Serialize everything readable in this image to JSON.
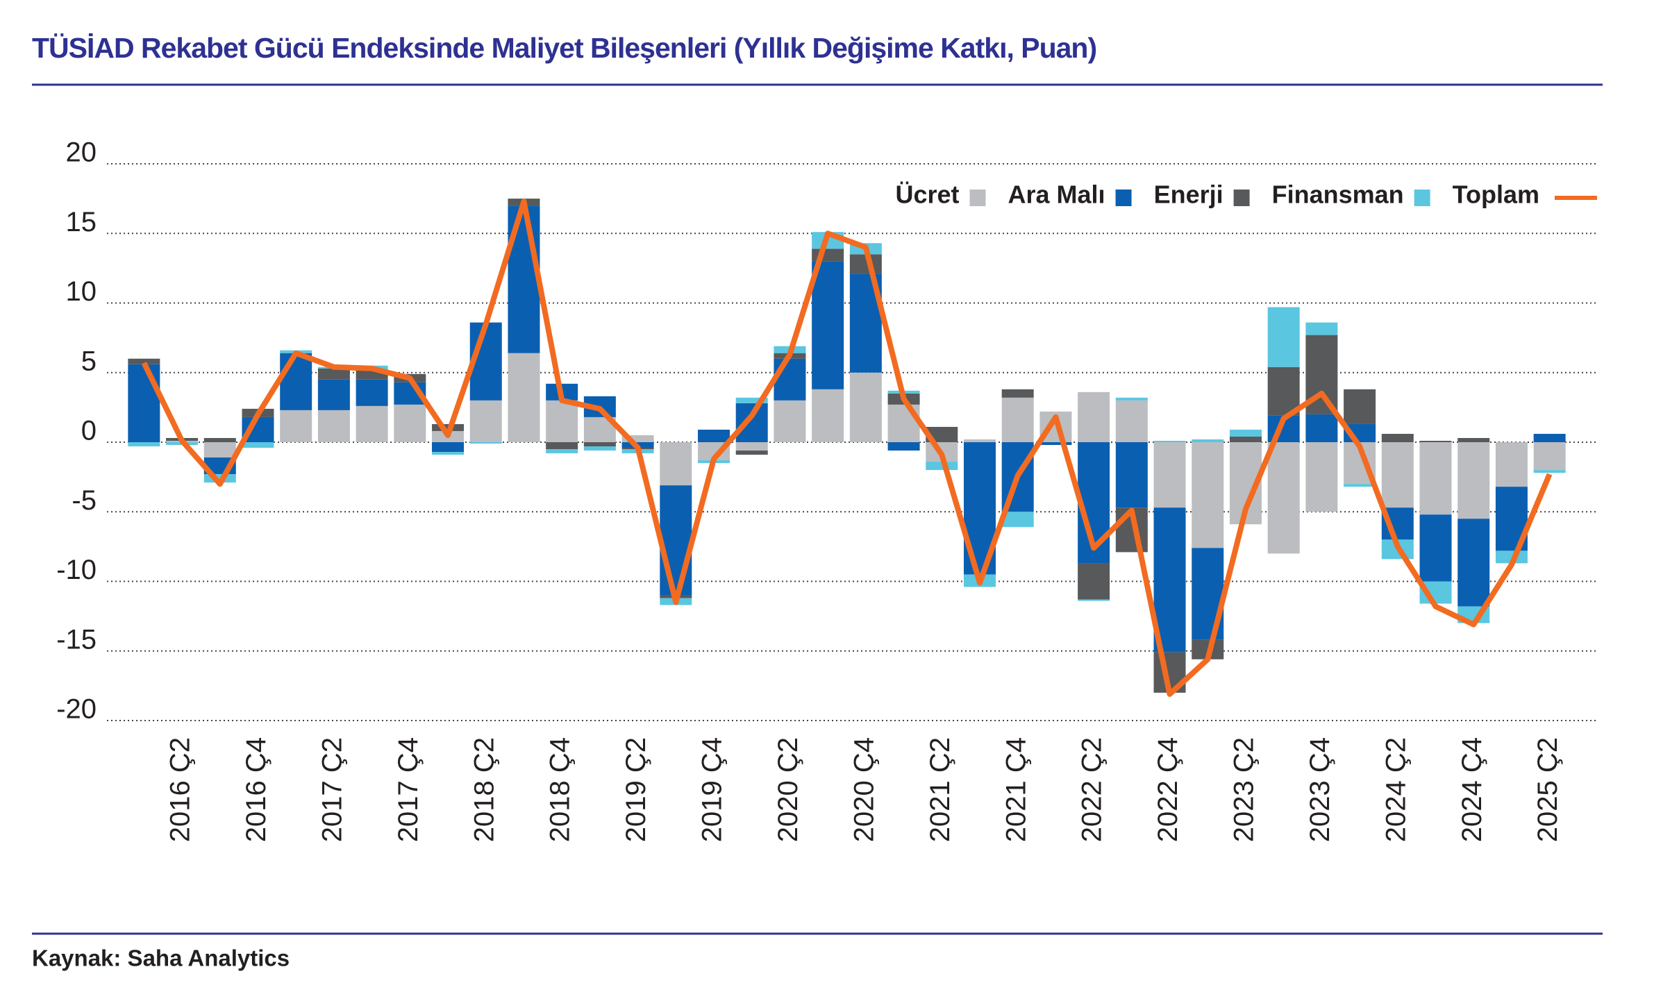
{
  "chart_data": {
    "type": "bar",
    "title": "TÜSİAD Rekabet Gücü Endeksinde Maliyet Bileşenleri (Yıllık Değişime Katkı, Puan)",
    "source": "Kaynak: Saha Analytics",
    "categories": [
      null,
      "2016 Ç2",
      null,
      "2016 Ç4",
      null,
      "2017 Ç2",
      null,
      "2017 Ç4",
      null,
      "2018 Ç2",
      null,
      "2018 Ç4",
      null,
      "2019 Ç2",
      null,
      "2019 Ç4",
      null,
      "2020 Ç2",
      null,
      "2020 Ç4",
      null,
      "2021 Ç2",
      null,
      "2021 Ç4",
      null,
      "2022 Ç2",
      null,
      "2022 Ç4",
      null,
      "2023 Ç2",
      null,
      "2023 Ç4",
      null,
      "2024 Ç2",
      null,
      "2024 Ç4",
      null,
      "2025 Ç2"
    ],
    "series": [
      {
        "name": "Ücret",
        "color": "#bcbdc0",
        "values": [
          0,
          0.1,
          -1.1,
          0,
          2.3,
          2.3,
          2.6,
          2.7,
          0.8,
          3.0,
          6.4,
          3.0,
          1.8,
          0.5,
          -3.1,
          -1.3,
          -0.6,
          3.0,
          3.8,
          5.0,
          2.7,
          -1.4,
          0.2,
          3.2,
          2.2,
          3.6,
          3.0,
          -4.7,
          -7.6,
          -5.9,
          -8.0,
          -5.0,
          -3.0,
          -4.7,
          -5.2,
          -5.5,
          -3.2,
          -2.0
        ]
      },
      {
        "name": "Ara Malı",
        "color": "#0b5fb0",
        "values": [
          5.6,
          0,
          -1.2,
          1.8,
          4.1,
          2.2,
          1.9,
          1.6,
          -0.7,
          5.6,
          10.6,
          1.2,
          1.5,
          -0.4,
          -7.9,
          0.9,
          2.8,
          3.0,
          9.2,
          7.1,
          -0.6,
          0,
          -9.5,
          -5.0,
          -0.2,
          -8.7,
          -4.7,
          -10.4,
          -6.6,
          0,
          1.9,
          2.0,
          1.3,
          -2.3,
          -4.8,
          -6.3,
          -4.6,
          0.6
        ]
      },
      {
        "name": "Enerji",
        "color": "#58595b",
        "values": [
          0.4,
          0.2,
          0.3,
          0.6,
          0,
          0.8,
          0.7,
          0.6,
          0.5,
          0,
          0.5,
          -0.5,
          -0.3,
          -0.1,
          -0.2,
          0,
          -0.3,
          0.4,
          0.9,
          1.4,
          0.8,
          1.1,
          0,
          0.6,
          0,
          -2.6,
          -3.2,
          -2.9,
          -1.4,
          0.4,
          3.5,
          5.7,
          2.5,
          0.6,
          0.1,
          0.3,
          0,
          0
        ]
      },
      {
        "name": "Finansman",
        "color": "#5bc6e0",
        "values": [
          -0.3,
          -0.2,
          -0.6,
          -0.4,
          0.2,
          0.1,
          0.3,
          0,
          -0.2,
          -0.1,
          0,
          -0.3,
          -0.3,
          -0.3,
          -0.5,
          -0.2,
          0.4,
          0.5,
          1.2,
          0.8,
          0.2,
          -0.6,
          -0.9,
          -1.1,
          0,
          -0.1,
          0.2,
          0.1,
          0.2,
          0.5,
          4.3,
          0.9,
          -0.2,
          -1.4,
          -1.6,
          -1.2,
          -0.9,
          -0.2
        ]
      },
      {
        "name": "Toplam",
        "type": "line",
        "color": "#f26b21",
        "values": [
          5.7,
          0.1,
          -3.0,
          2.0,
          6.4,
          5.4,
          5.3,
          4.6,
          0.5,
          8.5,
          17.3,
          3.0,
          2.4,
          -0.4,
          -11.5,
          -1.2,
          1.9,
          6.3,
          15.0,
          14.0,
          3.1,
          -0.9,
          -10.1,
          -2.4,
          1.8,
          -7.6,
          -4.9,
          -18.1,
          -15.6,
          -4.8,
          1.7,
          3.5,
          -0.3,
          -7.5,
          -11.8,
          -13.1,
          -8.8,
          -2.3
        ]
      }
    ],
    "ylim": [
      -20,
      20
    ],
    "yticks": [
      -20,
      -15,
      -10,
      -5,
      0,
      5,
      10,
      15,
      20
    ],
    "grid": true,
    "legend": "upper right"
  }
}
